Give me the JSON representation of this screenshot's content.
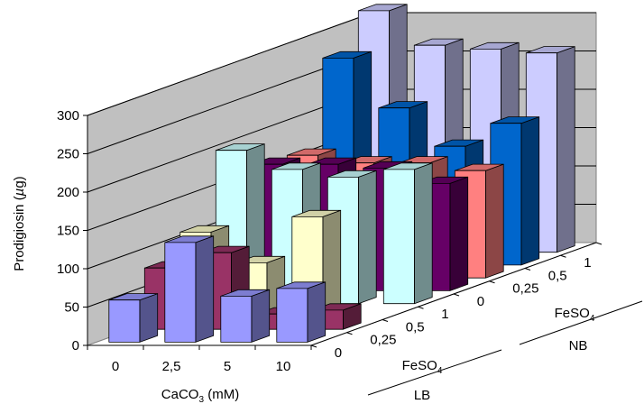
{
  "chart_data": {
    "type": "bar",
    "subtype": "3d-grouped",
    "ylabel": "Prodigiosin (µg)",
    "ylabel_parts": [
      "Prodigiosin (",
      "µ",
      "g)"
    ],
    "xlabel": "CaCO₃ (mM)",
    "xlabel_parts": [
      "CaCO",
      "3",
      " (mM)"
    ],
    "ylim": [
      0,
      300
    ],
    "yticks": [
      0,
      50,
      100,
      150,
      200,
      250,
      300
    ],
    "grid": true,
    "legend": "none",
    "categories": [
      "0",
      "2,5",
      "5",
      "10"
    ],
    "depth_rows": [
      {
        "medium": "LB",
        "feso4": "0",
        "label": "0"
      },
      {
        "medium": "LB",
        "feso4": "0,25",
        "label": "0,25"
      },
      {
        "medium": "LB",
        "feso4": "0,5",
        "label": "0,5"
      },
      {
        "medium": "LB",
        "feso4": "1",
        "label": "1"
      },
      {
        "medium": "NB",
        "feso4": "0",
        "label": "0"
      },
      {
        "medium": "NB",
        "feso4": "0,25",
        "label": "0,25"
      },
      {
        "medium": "NB",
        "feso4": "0,5",
        "label": "0,5"
      },
      {
        "medium": "NB",
        "feso4": "1",
        "label": "1"
      }
    ],
    "depth_groups": [
      {
        "label": "FeSO₄",
        "label_parts": [
          "FeSO",
          "4"
        ],
        "medium": "LB"
      },
      {
        "label": "FeSO₄",
        "label_parts": [
          "FeSO",
          "4"
        ],
        "medium": "NB"
      }
    ],
    "series": [
      {
        "name": "LB FeSO4 0",
        "color": "#9999ff",
        "values": [
          55,
          130,
          60,
          70
        ]
      },
      {
        "name": "LB FeSO4 0,25",
        "color": "#993366",
        "values": [
          80,
          100,
          20,
          25
        ]
      },
      {
        "name": "LB FeSO4 0,5",
        "color": "#ffffcc",
        "values": [
          110,
          70,
          130,
          0
        ]
      },
      {
        "name": "LB FeSO4 1",
        "color": "#ccffff",
        "values": [
          200,
          175,
          165,
          175
        ]
      },
      {
        "name": "NB FeSO4 0",
        "color": "#660066",
        "values": [
          165,
          165,
          160,
          140
        ]
      },
      {
        "name": "NB FeSO4 0,25",
        "color": "#ff8080",
        "values": [
          160,
          150,
          150,
          140
        ]
      },
      {
        "name": "NB FeSO4 0,5",
        "color": "#0066cc",
        "values": [
          270,
          205,
          155,
          185
        ]
      },
      {
        "name": "NB FeSO4 1",
        "color": "#ccccff",
        "values": [
          315,
          270,
          265,
          260
        ]
      }
    ]
  }
}
